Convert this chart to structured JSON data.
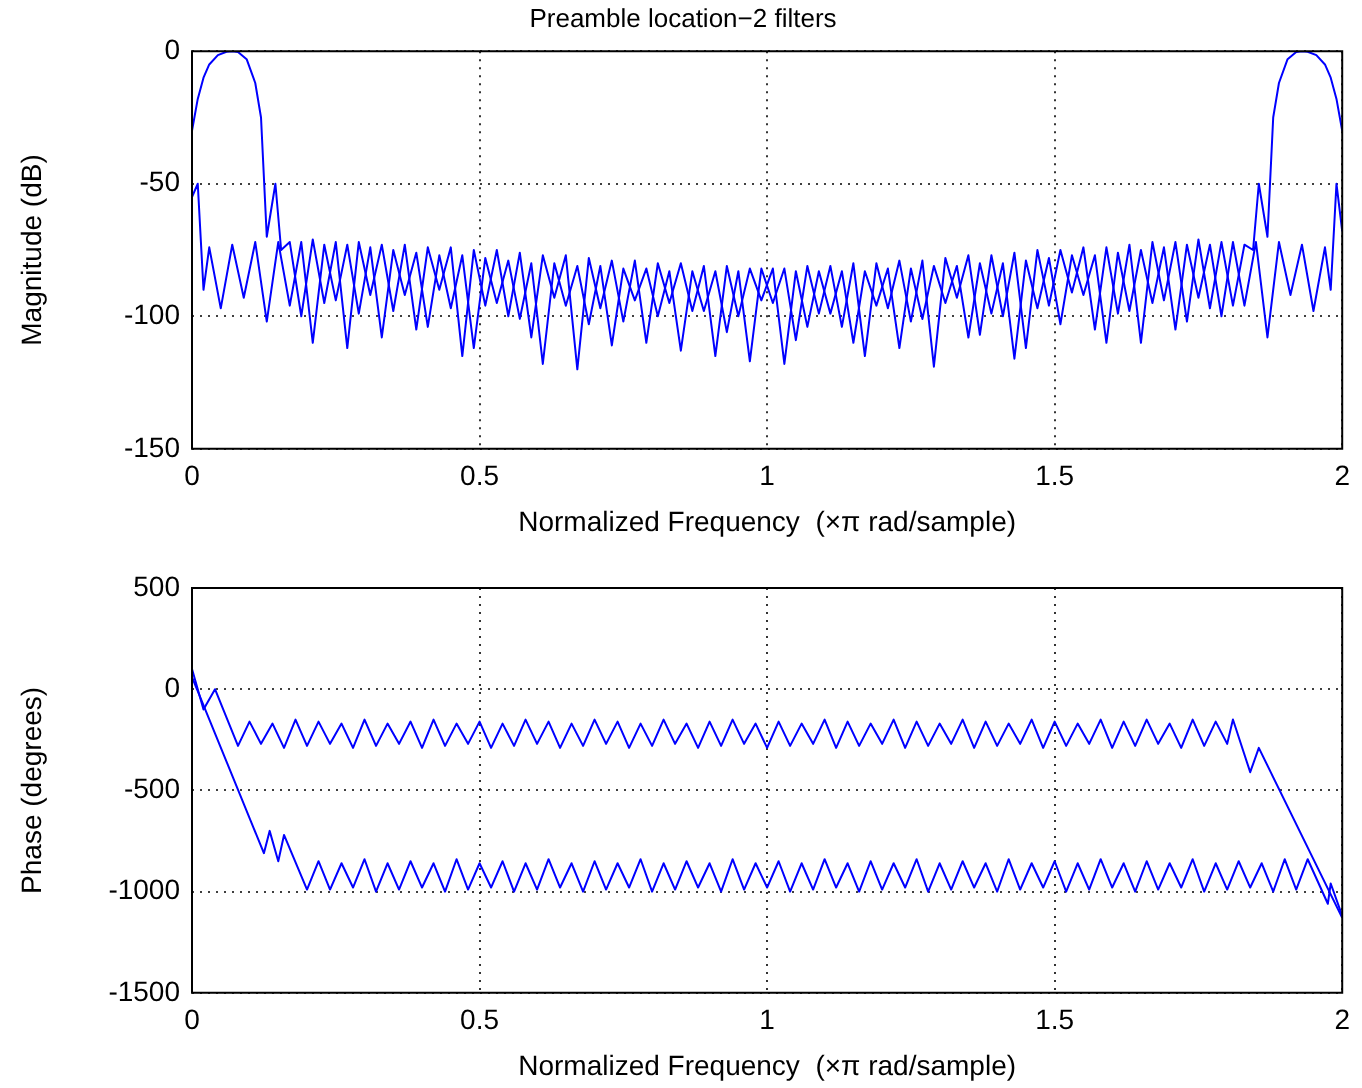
{
  "chart_data": [
    {
      "type": "line",
      "title": "Preamble location−2 filters",
      "xlabel": "Normalized Frequency  (×π rad/sample)",
      "ylabel": "Magnitude (dB)",
      "xlim": [
        0,
        2
      ],
      "xticks": [
        0,
        0.5,
        1,
        1.5,
        2
      ],
      "ylim": [
        -150,
        0
      ],
      "yticks": [
        -150,
        -100,
        -50,
        0
      ],
      "grid": true,
      "marker": "none",
      "line_style": "solid",
      "series": [
        {
          "color": "#0000ff",
          "x": [
            0,
            0.01,
            0.02,
            0.03,
            0.045,
            0.06,
            0.07,
            0.08,
            0.095,
            0.11,
            0.12,
            0.13,
            0.145,
            0.155,
            0.17,
            0.19,
            0.21,
            0.23,
            0.25,
            0.27,
            0.29,
            0.31,
            0.33,
            0.35,
            0.37,
            0.39,
            0.41,
            0.43,
            0.45,
            0.47,
            0.49,
            0.51,
            0.53,
            0.55,
            0.57,
            0.59,
            0.61,
            0.63,
            0.65,
            0.67,
            0.69,
            0.71,
            0.73,
            0.75,
            0.77,
            0.79,
            0.81,
            0.83,
            0.85,
            0.87,
            0.89,
            0.91,
            0.93,
            0.95,
            0.97,
            0.99,
            1.01,
            1.03,
            1.05,
            1.07,
            1.09,
            1.11,
            1.13,
            1.15,
            1.17,
            1.19,
            1.21,
            1.23,
            1.25,
            1.27,
            1.29,
            1.31,
            1.33,
            1.35,
            1.37,
            1.39,
            1.41,
            1.43,
            1.45,
            1.47,
            1.49,
            1.51,
            1.53,
            1.55,
            1.57,
            1.59,
            1.61,
            1.63,
            1.65,
            1.67,
            1.69,
            1.71,
            1.73,
            1.75,
            1.77,
            1.79,
            1.81,
            1.83,
            1.85,
            1.87,
            1.89,
            1.91,
            1.93,
            1.95,
            1.97,
            1.98,
            1.99,
            2
          ],
          "values": [
            -30,
            -18,
            -10,
            -5,
            -1.5,
            -0.2,
            0,
            -0.3,
            -3,
            -12,
            -25,
            -70,
            -50,
            -75,
            -72,
            -100,
            -71,
            -95,
            -72,
            -112,
            -72,
            -92,
            -73,
            -98,
            -73,
            -105,
            -74,
            -90,
            -74,
            -115,
            -75,
            -96,
            -75,
            -100,
            -76,
            -108,
            -77,
            -93,
            -77,
            -120,
            -78,
            -97,
            -79,
            -102,
            -79,
            -110,
            -80,
            -95,
            -80,
            -98,
            -81,
            -115,
            -81,
            -100,
            -82,
            -94,
            -82,
            -118,
            -83,
            -104,
            -83,
            -99,
            -83,
            -110,
            -83,
            -96,
            -82,
            -112,
            -82,
            -101,
            -81,
            -95,
            -81,
            -108,
            -80,
            -99,
            -80,
            -116,
            -79,
            -97,
            -78,
            -103,
            -77,
            -92,
            -77,
            -110,
            -76,
            -98,
            -75,
            -95,
            -74,
            -105,
            -73,
            -93,
            -73,
            -100,
            -72,
            -96,
            -72,
            -108,
            -72,
            -92,
            -73,
            -98,
            -74,
            -90,
            -50,
            -68
          ]
        },
        {
          "color": "#0000ff",
          "x": [
            0,
            0.01,
            0.02,
            0.03,
            0.05,
            0.07,
            0.09,
            0.11,
            0.13,
            0.15,
            0.17,
            0.19,
            0.21,
            0.23,
            0.25,
            0.27,
            0.29,
            0.31,
            0.33,
            0.35,
            0.37,
            0.39,
            0.41,
            0.43,
            0.45,
            0.47,
            0.49,
            0.51,
            0.53,
            0.55,
            0.57,
            0.59,
            0.61,
            0.63,
            0.65,
            0.67,
            0.69,
            0.71,
            0.73,
            0.75,
            0.77,
            0.79,
            0.81,
            0.83,
            0.85,
            0.87,
            0.89,
            0.91,
            0.93,
            0.95,
            0.97,
            0.99,
            1.01,
            1.03,
            1.05,
            1.07,
            1.09,
            1.11,
            1.13,
            1.15,
            1.17,
            1.19,
            1.21,
            1.23,
            1.25,
            1.27,
            1.29,
            1.31,
            1.33,
            1.35,
            1.37,
            1.39,
            1.41,
            1.43,
            1.45,
            1.47,
            1.49,
            1.51,
            1.53,
            1.55,
            1.57,
            1.59,
            1.61,
            1.63,
            1.65,
            1.67,
            1.69,
            1.71,
            1.73,
            1.75,
            1.77,
            1.79,
            1.81,
            1.83,
            1.845,
            1.855,
            1.87,
            1.88,
            1.89,
            1.905,
            1.92,
            1.93,
            1.94,
            1.955,
            1.97,
            1.98,
            1.99,
            2
          ],
          "values": [
            -55,
            -50,
            -90,
            -74,
            -97,
            -73,
            -93,
            -72,
            -102,
            -72,
            -96,
            -72,
            -110,
            -73,
            -94,
            -73,
            -99,
            -74,
            -108,
            -75,
            -92,
            -76,
            -104,
            -77,
            -97,
            -77,
            -112,
            -78,
            -95,
            -79,
            -101,
            -80,
            -118,
            -80,
            -96,
            -81,
            -103,
            -81,
            -111,
            -82,
            -94,
            -82,
            -100,
            -83,
            -113,
            -83,
            -98,
            -83,
            -106,
            -83,
            -117,
            -82,
            -95,
            -82,
            -109,
            -81,
            -99,
            -81,
            -104,
            -80,
            -115,
            -80,
            -97,
            -79,
            -102,
            -79,
            -119,
            -78,
            -93,
            -77,
            -107,
            -77,
            -100,
            -76,
            -112,
            -75,
            -96,
            -75,
            -91,
            -74,
            -105,
            -74,
            -99,
            -73,
            -110,
            -72,
            -94,
            -72,
            -102,
            -71,
            -97,
            -72,
            -96,
            -73,
            -75,
            -50,
            -70,
            -25,
            -12,
            -3,
            -0.3,
            0,
            -0.2,
            -1.5,
            -5,
            -10,
            -18,
            -30
          ]
        }
      ]
    },
    {
      "type": "line",
      "xlabel": "Normalized Frequency  (×π rad/sample)",
      "ylabel": "Phase (degrees)",
      "xlim": [
        0,
        2
      ],
      "xticks": [
        0,
        0.5,
        1,
        1.5,
        2
      ],
      "ylim": [
        -1500,
        500
      ],
      "yticks": [
        -1500,
        -1000,
        -500,
        0,
        500
      ],
      "grid": true,
      "marker": "none",
      "line_style": "solid",
      "series": [
        {
          "color": "#0000ff",
          "x": [
            0,
            0.02,
            0.04,
            0.08,
            0.1,
            0.12,
            0.14,
            0.16,
            0.18,
            0.2,
            0.22,
            0.24,
            0.26,
            0.28,
            0.3,
            0.32,
            0.34,
            0.36,
            0.38,
            0.4,
            0.42,
            0.44,
            0.46,
            0.48,
            0.5,
            0.52,
            0.54,
            0.56,
            0.58,
            0.6,
            0.62,
            0.64,
            0.66,
            0.68,
            0.7,
            0.72,
            0.74,
            0.76,
            0.78,
            0.8,
            0.82,
            0.84,
            0.86,
            0.88,
            0.9,
            0.92,
            0.94,
            0.96,
            0.98,
            1,
            1.02,
            1.04,
            1.06,
            1.08,
            1.1,
            1.12,
            1.14,
            1.16,
            1.18,
            1.2,
            1.22,
            1.24,
            1.26,
            1.28,
            1.3,
            1.32,
            1.34,
            1.36,
            1.38,
            1.4,
            1.42,
            1.44,
            1.46,
            1.48,
            1.5,
            1.52,
            1.54,
            1.56,
            1.58,
            1.6,
            1.62,
            1.64,
            1.66,
            1.68,
            1.7,
            1.72,
            1.74,
            1.76,
            1.78,
            1.8,
            1.81,
            1.84,
            1.855,
            2
          ],
          "values": [
            100,
            -100,
            0,
            -280,
            -160,
            -270,
            -170,
            -290,
            -150,
            -280,
            -160,
            -270,
            -170,
            -290,
            -150,
            -280,
            -170,
            -270,
            -160,
            -290,
            -150,
            -280,
            -170,
            -270,
            -160,
            -290,
            -170,
            -280,
            -150,
            -270,
            -160,
            -290,
            -170,
            -280,
            -150,
            -270,
            -160,
            -290,
            -170,
            -280,
            -150,
            -270,
            -170,
            -290,
            -160,
            -280,
            -150,
            -270,
            -170,
            -290,
            -160,
            -280,
            -170,
            -270,
            -150,
            -290,
            -160,
            -280,
            -170,
            -270,
            -150,
            -290,
            -160,
            -280,
            -170,
            -270,
            -150,
            -290,
            -160,
            -280,
            -170,
            -270,
            -150,
            -290,
            -160,
            -280,
            -170,
            -270,
            -150,
            -290,
            -160,
            -280,
            -150,
            -270,
            -170,
            -290,
            -150,
            -280,
            -160,
            -270,
            -150,
            -410,
            -290,
            -1130
          ]
        },
        {
          "color": "#0000ff",
          "x": [
            0,
            0.125,
            0.135,
            0.15,
            0.16,
            0.2,
            0.22,
            0.24,
            0.26,
            0.28,
            0.3,
            0.32,
            0.34,
            0.36,
            0.38,
            0.4,
            0.42,
            0.44,
            0.46,
            0.48,
            0.5,
            0.52,
            0.54,
            0.56,
            0.58,
            0.6,
            0.62,
            0.64,
            0.66,
            0.68,
            0.7,
            0.72,
            0.74,
            0.76,
            0.78,
            0.8,
            0.82,
            0.84,
            0.86,
            0.88,
            0.9,
            0.92,
            0.94,
            0.96,
            0.98,
            1,
            1.02,
            1.04,
            1.06,
            1.08,
            1.1,
            1.12,
            1.14,
            1.16,
            1.18,
            1.2,
            1.22,
            1.24,
            1.26,
            1.28,
            1.3,
            1.32,
            1.34,
            1.36,
            1.38,
            1.4,
            1.42,
            1.44,
            1.46,
            1.48,
            1.5,
            1.52,
            1.54,
            1.56,
            1.58,
            1.6,
            1.62,
            1.64,
            1.66,
            1.68,
            1.7,
            1.72,
            1.74,
            1.76,
            1.78,
            1.8,
            1.82,
            1.84,
            1.86,
            1.88,
            1.9,
            1.92,
            1.94,
            1.975,
            1.98,
            2
          ],
          "values": [
            60,
            -810,
            -700,
            -850,
            -720,
            -990,
            -850,
            -990,
            -860,
            -980,
            -840,
            -1000,
            -860,
            -990,
            -850,
            -980,
            -860,
            -1000,
            -840,
            -990,
            -860,
            -980,
            -850,
            -1000,
            -860,
            -990,
            -840,
            -980,
            -860,
            -1000,
            -850,
            -990,
            -860,
            -980,
            -840,
            -1000,
            -860,
            -990,
            -850,
            -980,
            -860,
            -1000,
            -840,
            -990,
            -860,
            -980,
            -850,
            -1000,
            -860,
            -990,
            -840,
            -980,
            -860,
            -1000,
            -850,
            -990,
            -860,
            -980,
            -840,
            -1000,
            -860,
            -990,
            -850,
            -980,
            -860,
            -1000,
            -840,
            -990,
            -860,
            -980,
            -850,
            -1000,
            -860,
            -990,
            -840,
            -980,
            -860,
            -1000,
            -850,
            -990,
            -860,
            -980,
            -840,
            -1000,
            -860,
            -990,
            -850,
            -980,
            -860,
            -1000,
            -840,
            -990,
            -840,
            -1060,
            -960,
            -1120
          ]
        }
      ]
    }
  ]
}
